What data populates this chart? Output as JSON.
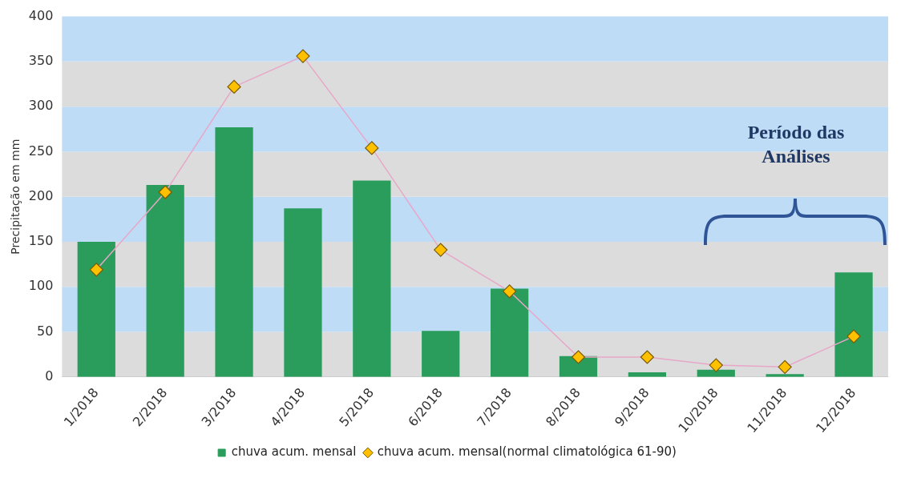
{
  "chart_data": {
    "type": "bar",
    "ylabel": "Precipitação em mm",
    "categories": [
      "1/2018",
      "2/2018",
      "3/2018",
      "4/2018",
      "5/2018",
      "6/2018",
      "7/2018",
      "8/2018",
      "9/2018",
      "10/2018",
      "11/2018",
      "12/2018"
    ],
    "series": [
      {
        "name": "chuva acum. mensal",
        "color": "#2a9d5c",
        "values": [
          150,
          213,
          277,
          187,
          218,
          51,
          98,
          23,
          5,
          8,
          3,
          116
        ]
      },
      {
        "name": "chuva acum. mensal(normal climatológica 61-90)",
        "type": "line",
        "color": "#e8a6c8",
        "marker": "diamond",
        "values": [
          119,
          205,
          322,
          356,
          254,
          141,
          95,
          22,
          22,
          13,
          11,
          45
        ]
      }
    ],
    "ylim": [
      0,
      400
    ],
    "yticks": [
      0,
      50,
      100,
      150,
      200,
      250,
      300,
      350,
      400
    ],
    "legend": "bottom",
    "bands": [
      {
        "axis": "y",
        "from": 0,
        "to": 50,
        "color": "#dcdcdc"
      },
      {
        "axis": "y",
        "from": 50,
        "to": 100,
        "color": "#bfdcf7"
      },
      {
        "axis": "y",
        "from": 100,
        "to": 150,
        "color": "#dcdcdc"
      },
      {
        "axis": "y",
        "from": 150,
        "to": 200,
        "color": "#bfdcf7"
      },
      {
        "axis": "y",
        "from": 200,
        "to": 250,
        "color": "#dcdcdc"
      },
      {
        "axis": "y",
        "from": 250,
        "to": 300,
        "color": "#bfdcf7"
      },
      {
        "axis": "y",
        "from": 300,
        "to": 350,
        "color": "#dcdcdc"
      },
      {
        "axis": "y",
        "from": 350,
        "to": 400,
        "color": "#bfdcf7"
      }
    ],
    "annotations": [
      "Período das Análises"
    ]
  }
}
